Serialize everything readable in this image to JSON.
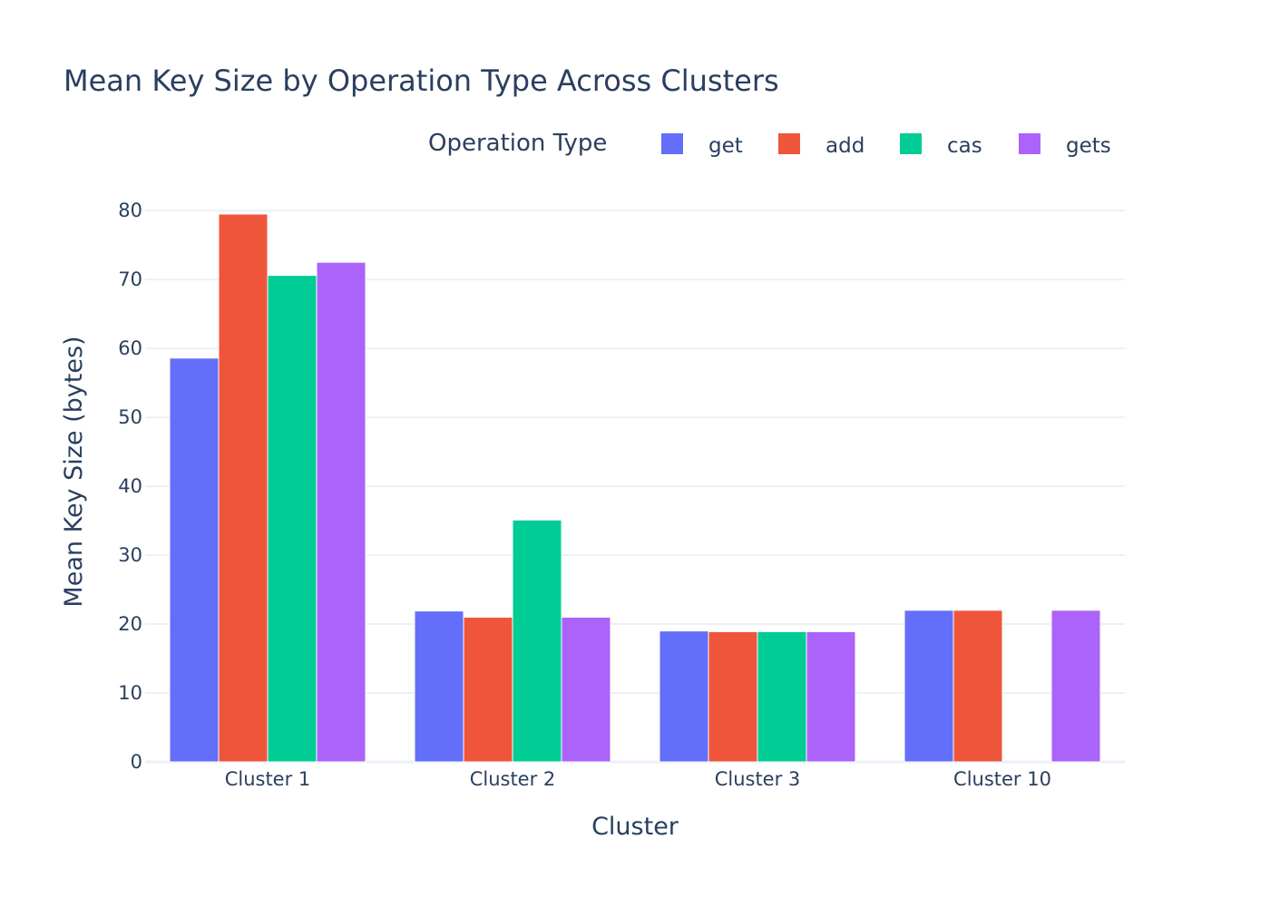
{
  "chart_data": {
    "type": "bar",
    "title": "Mean Key Size by Operation Type Across Clusters",
    "xlabel": "Cluster",
    "ylabel": "Mean Key Size (bytes)",
    "categories": [
      "Cluster 1",
      "Cluster 2",
      "Cluster 3",
      "Cluster 10"
    ],
    "ylim": [
      0,
      82
    ],
    "yticks": [
      0,
      10,
      20,
      30,
      40,
      50,
      60,
      70,
      80
    ],
    "grid": true,
    "legend_title": "Operation Type",
    "legend_position": "top-right",
    "series": [
      {
        "name": "get",
        "color": "#636efa",
        "values": [
          58.6,
          21.9,
          19.0,
          22.0
        ]
      },
      {
        "name": "add",
        "color": "#ef553b",
        "values": [
          79.5,
          21.0,
          18.9,
          22.0
        ]
      },
      {
        "name": "cas",
        "color": "#00cc96",
        "values": [
          70.6,
          35.1,
          18.9,
          null
        ]
      },
      {
        "name": "gets",
        "color": "#ab63fa",
        "values": [
          72.5,
          21.0,
          18.9,
          22.0
        ]
      }
    ]
  }
}
